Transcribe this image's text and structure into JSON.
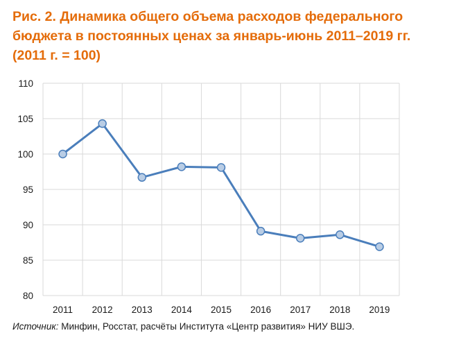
{
  "title_lines": [
    "Рис. 2. Динамика общего объема расходов федерального",
    "бюджета в постоянных ценах за январь-июнь 2011–2019 гг.",
    "(2011 г. = 100)"
  ],
  "source": {
    "label": "Источник:",
    "text": " Минфин, Росстат, расчёты Института «Центр развития» НИУ ВШЭ."
  },
  "colors": {
    "title": "#E46C0A",
    "line": "#4A7EBB",
    "marker_fill": "#B9CDE5",
    "marker_stroke": "#4A7EBB",
    "grid": "#D9D9D9"
  },
  "chart_data": {
    "type": "line",
    "categories": [
      "2011",
      "2012",
      "2013",
      "2014",
      "2015",
      "2016",
      "2017",
      "2018",
      "2019"
    ],
    "series": [
      {
        "values": [
          100.0,
          104.3,
          96.7,
          98.2,
          98.1,
          89.1,
          88.1,
          88.6,
          86.9
        ]
      }
    ],
    "ylim": [
      80,
      110
    ],
    "yticks": [
      "80",
      "85",
      "90",
      "95",
      "100",
      "105",
      "110"
    ],
    "grid": true,
    "legend": "none"
  }
}
